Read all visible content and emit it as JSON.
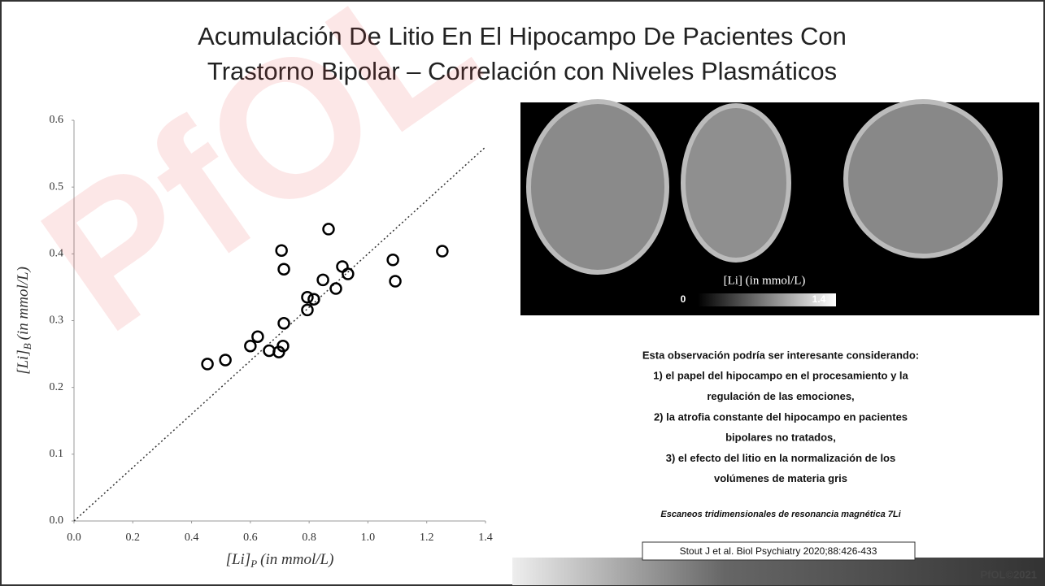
{
  "title": [
    "Acumulación De Litio En El Hipocampo De Pacientes Con",
    "Trastorno Bipolar – Correlación con Niveles Plasmáticos"
  ],
  "chart_data": {
    "type": "scatter",
    "x": [
      0.454,
      0.515,
      0.6,
      0.625,
      0.664,
      0.697,
      0.711,
      0.714,
      0.706,
      0.714,
      0.794,
      0.794,
      0.816,
      0.847,
      0.866,
      0.891,
      0.913,
      0.932,
      1.085,
      1.093,
      1.253
    ],
    "values": [
      0.235,
      0.241,
      0.262,
      0.276,
      0.255,
      0.253,
      0.262,
      0.296,
      0.405,
      0.377,
      0.316,
      0.335,
      0.332,
      0.361,
      0.437,
      0.348,
      0.381,
      0.37,
      0.391,
      0.359,
      0.404
    ],
    "color": "#000000",
    "xlim": [
      0,
      1.4
    ],
    "ylim": [
      0,
      0.6
    ],
    "xticks": [
      {
        "value": 0,
        "label": "0.0"
      },
      0.2,
      0.4,
      0.6,
      0.8,
      {
        "value": 1,
        "label": "1.0"
      },
      1.2,
      1.4
    ],
    "yticks": [
      {
        "value": 0,
        "label": "0.0"
      },
      0.1,
      0.2,
      0.3,
      0.4,
      0.5,
      0.6
    ],
    "xlabel": {
      "main": "[Li]",
      "sub": "P",
      "unit": "(in mmol/L)"
    },
    "ylabel": {
      "main": "[Li]",
      "sub": "B",
      "unit": "(in mmol/L)"
    },
    "reference_line": {
      "x": [
        0,
        1.4
      ],
      "y": [
        0,
        0.56
      ]
    },
    "grid": false
  },
  "image": {
    "colorbar_label": "[Li] (in mmol/L)",
    "colorbar_min": "0",
    "colorbar_max": "1.4"
  },
  "body": [
    "Esta observación podría ser interesante considerando:",
    "1) el papel del hipocampo en el procesamiento y la",
    "regulación de las emociones,",
    "2) la atrofia constante del hipocampo en pacientes",
    "bipolares no tratados,",
    "3) el efecto del litio en la normalización de los",
    "volúmenes de materia gris"
  ],
  "caption": "Escaneos tridimensionales de resonancia magnética 7Li",
  "citation": "Stout J et al. Biol Psychiatry 2020;88:426-433",
  "watermark": "PfOL",
  "copyright": "PfOL©2021"
}
